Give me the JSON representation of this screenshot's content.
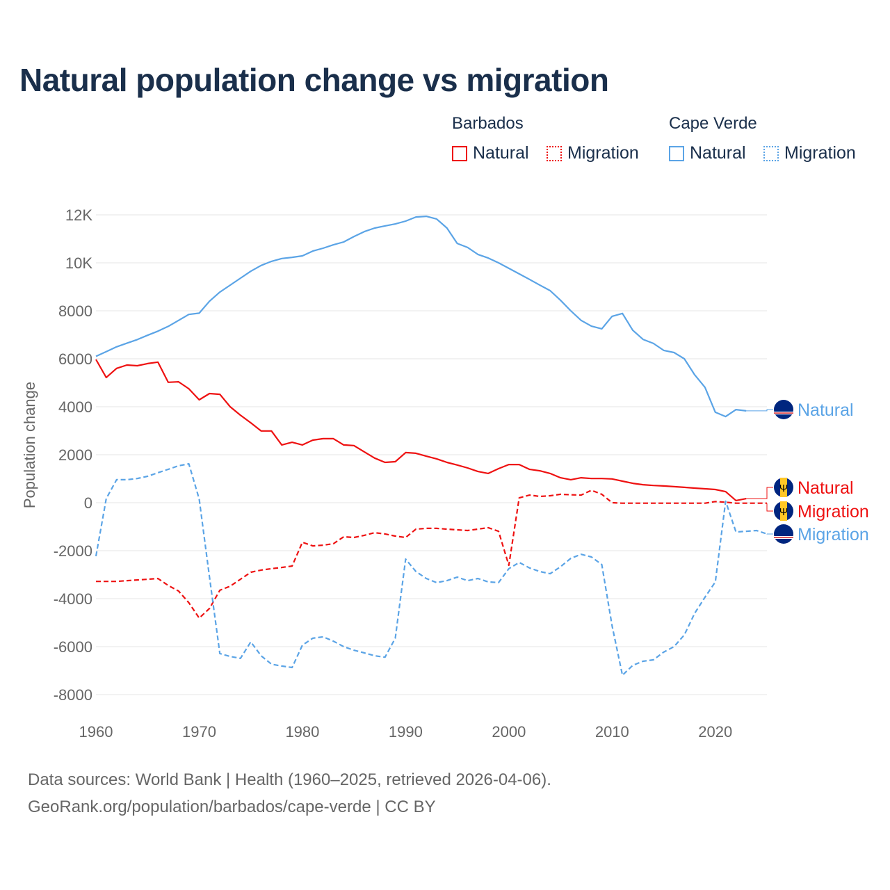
{
  "title": "Natural population change vs migration",
  "legend": {
    "groups": [
      {
        "name": "Barbados",
        "items": [
          {
            "label": "Natural",
            "style": "solid"
          },
          {
            "label": "Migration",
            "style": "dotted"
          }
        ],
        "color": "#ee1111"
      },
      {
        "name": "Cape Verde",
        "items": [
          {
            "label": "Natural",
            "style": "solid"
          },
          {
            "label": "Migration",
            "style": "dotted"
          }
        ],
        "color": "#5ba4e6"
      }
    ]
  },
  "footer": {
    "line1": "Data sources: World Bank | Health (1960–2025, retrieved 2026-04-06).",
    "line2": "GeoRank.org/population/barbados/cape-verde | CC BY"
  },
  "chart_data": {
    "type": "line",
    "title": "Natural population change vs migration",
    "xlabel": "",
    "ylabel": "Population change",
    "xlim": [
      1960,
      2025
    ],
    "ylim": [
      -8000,
      12000
    ],
    "grid": true,
    "legend_placement": "top-right",
    "x_ticks": [
      1960,
      1970,
      1980,
      1990,
      2000,
      2010,
      2020
    ],
    "x_tick_labels": [
      "1960",
      "1970",
      "1980",
      "1990",
      "2000",
      "2010",
      "2020"
    ],
    "y_ticks": [
      12000,
      10000,
      8000,
      6000,
      4000,
      2000,
      0,
      -2000,
      -4000,
      -6000,
      -8000
    ],
    "y_tick_labels": [
      "12K",
      "10K",
      "8000",
      "6000",
      "4000",
      "2000",
      "0",
      "-2000",
      "-4000",
      "-6000",
      "-8000"
    ],
    "series": [
      {
        "name": "Cape Verde Natural",
        "end_label": "Natural",
        "color": "#5ba4e6",
        "dash": false,
        "start": 1960,
        "values": [
          6100,
          6300,
          6500,
          6650,
          6800,
          6980,
          7150,
          7350,
          7600,
          7850,
          7900,
          8400,
          8780,
          9070,
          9360,
          9650,
          9890,
          10060,
          10180,
          10230,
          10290,
          10490,
          10610,
          10750,
          10870,
          11100,
          11300,
          11450,
          11540,
          11620,
          11740,
          11910,
          11940,
          11830,
          11450,
          10810,
          10640,
          10350,
          10200,
          10000,
          9770,
          9540,
          9310,
          9070,
          8840,
          8440,
          8000,
          7600,
          7360,
          7250,
          7770,
          7890,
          7190,
          6810,
          6640,
          6350,
          6260,
          6000,
          5330,
          4810,
          3770,
          3590,
          3880,
          3830
        ]
      },
      {
        "name": "Barbados Natural",
        "end_label": "Natural",
        "color": "#ee1111",
        "dash": false,
        "start": 1960,
        "values": [
          5970,
          5220,
          5600,
          5740,
          5710,
          5800,
          5860,
          5020,
          5040,
          4750,
          4290,
          4550,
          4520,
          4000,
          3650,
          3330,
          2990,
          2990,
          2410,
          2520,
          2410,
          2610,
          2670,
          2670,
          2410,
          2380,
          2120,
          1860,
          1680,
          1710,
          2090,
          2060,
          1940,
          1830,
          1680,
          1570,
          1450,
          1300,
          1220,
          1420,
          1590,
          1590,
          1390,
          1330,
          1220,
          1040,
          960,
          1040,
          1010,
          1010,
          990,
          900,
          810,
          750,
          720,
          700,
          670,
          640,
          610,
          580,
          550,
          460,
          90,
          170
        ]
      },
      {
        "name": "Barbados Migration",
        "end_label": "Migration",
        "color": "#ee1111",
        "dash": true,
        "start": 1960,
        "values": [
          -3280,
          -3280,
          -3280,
          -3250,
          -3220,
          -3190,
          -3160,
          -3450,
          -3680,
          -4170,
          -4810,
          -4410,
          -3650,
          -3480,
          -3190,
          -2900,
          -2810,
          -2750,
          -2700,
          -2640,
          -1650,
          -1800,
          -1770,
          -1710,
          -1420,
          -1450,
          -1360,
          -1250,
          -1300,
          -1390,
          -1450,
          -1100,
          -1070,
          -1070,
          -1100,
          -1130,
          -1160,
          -1100,
          -1040,
          -1190,
          -2610,
          200,
          320,
          260,
          290,
          350,
          330,
          320,
          520,
          350,
          0,
          -20,
          -20,
          -20,
          -20,
          -20,
          -20,
          -20,
          -20,
          -20,
          50,
          20,
          -20,
          -20,
          -20,
          -20
        ]
      },
      {
        "name": "Cape Verde Migration",
        "end_label": "Migration",
        "color": "#5ba4e6",
        "dash": true,
        "start": 1960,
        "values": [
          -2230,
          170,
          960,
          960,
          1010,
          1100,
          1250,
          1390,
          1540,
          1620,
          150,
          -3100,
          -6290,
          -6410,
          -6490,
          -5800,
          -6380,
          -6730,
          -6810,
          -6870,
          -5940,
          -5650,
          -5590,
          -5770,
          -6000,
          -6150,
          -6260,
          -6380,
          -6440,
          -5650,
          -2350,
          -2870,
          -3160,
          -3330,
          -3250,
          -3100,
          -3250,
          -3160,
          -3300,
          -3330,
          -2750,
          -2490,
          -2720,
          -2870,
          -2960,
          -2670,
          -2320,
          -2150,
          -2260,
          -2580,
          -5130,
          -7190,
          -6780,
          -6610,
          -6550,
          -6230,
          -6000,
          -5510,
          -4610,
          -3940,
          -3300,
          60,
          -1220,
          -1190,
          -1160,
          -1300
        ]
      }
    ]
  }
}
